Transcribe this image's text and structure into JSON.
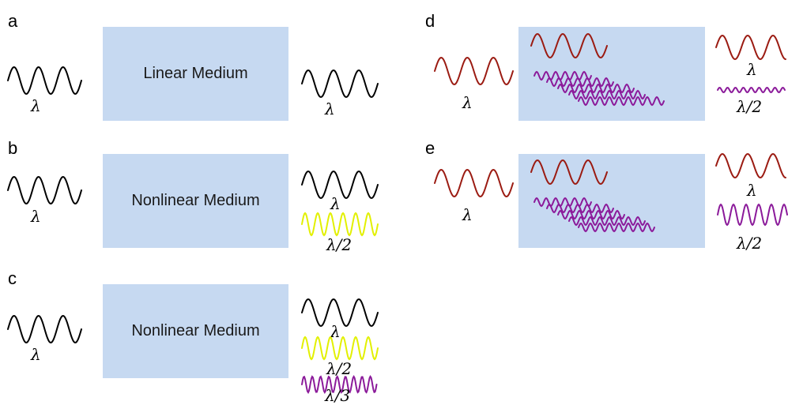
{
  "panels": {
    "a": {
      "label": "a",
      "medium": "Linear Medium",
      "in_lambda": "λ",
      "out_lambda": "λ"
    },
    "b": {
      "label": "b",
      "medium": "Nonlinear Medium",
      "in_lambda": "λ",
      "out_lambda1": "λ",
      "out_lambda2": "λ/2"
    },
    "c": {
      "label": "c",
      "medium": "Nonlinear Medium",
      "in_lambda": "λ",
      "out_lambda1": "λ",
      "out_lambda2": "λ/2",
      "out_lambda3": "λ/3"
    },
    "d": {
      "label": "d",
      "in_lambda": "λ",
      "out_lambda1": "λ",
      "out_lambda2": "λ/2"
    },
    "e": {
      "label": "e",
      "in_lambda": "λ",
      "out_lambda1": "λ",
      "out_lambda2": "λ/2"
    }
  },
  "colors": {
    "medium_fill": "#c6d9f1",
    "fundamental_black": "#000000",
    "second_harmonic_yellow": "#e2f000",
    "third_harmonic_purple": "#8b1a9a",
    "fundamental_red": "#9b1b12"
  }
}
